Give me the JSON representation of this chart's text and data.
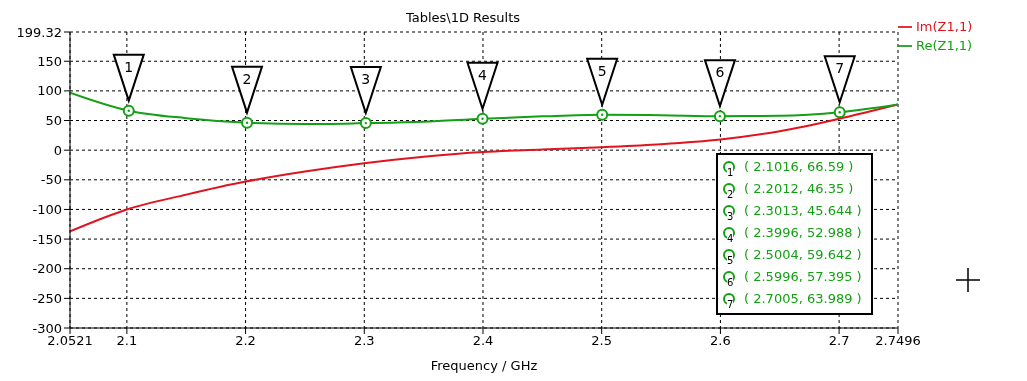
{
  "chart_data": {
    "type": "line",
    "title": "Tables\\1D Results",
    "xlabel": "Frequency / GHz",
    "xlim": [
      2.0521,
      2.7496
    ],
    "xticks": [
      2.0521,
      2.1,
      2.2,
      2.3,
      2.4,
      2.5,
      2.6,
      2.7,
      2.7496
    ],
    "ylim": [
      -300,
      199.32
    ],
    "yticks": [
      -300,
      -250,
      -200,
      -150,
      -100,
      -50,
      0,
      50,
      100,
      150,
      199.32
    ],
    "grid": true,
    "legend": "top right",
    "marker": "none",
    "line_style": "solid",
    "series": [
      {
        "name": "Im(Z1,1)",
        "color": "#e0141e",
        "x": [
          2.0521,
          2.1,
          2.15,
          2.2,
          2.25,
          2.3,
          2.35,
          2.4,
          2.45,
          2.5,
          2.55,
          2.6,
          2.65,
          2.7,
          2.7496
        ],
        "values": [
          -137,
          -100,
          -75,
          -53,
          -36,
          -22,
          -11,
          -3,
          1,
          5,
          10,
          18,
          32,
          53,
          77
        ]
      },
      {
        "name": "Re(Z1,1)",
        "color": "#14a014",
        "x": [
          2.0521,
          2.1016,
          2.15,
          2.2012,
          2.25,
          2.3013,
          2.35,
          2.3996,
          2.45,
          2.5004,
          2.55,
          2.5996,
          2.65,
          2.7005,
          2.7496
        ],
        "values": [
          97,
          66.59,
          54,
          46.35,
          44,
          45.644,
          48,
          52.988,
          57,
          59.642,
          59,
          57.395,
          58,
          63.989,
          77
        ]
      },
      {
        "type": "scatter",
        "color": "#14a014",
        "marker": "circle",
        "x": [
          2.1016,
          2.2012,
          2.3013,
          2.3996,
          2.5004,
          2.5996,
          2.7005
        ],
        "values": [
          66.59,
          46.35,
          45.644,
          52.988,
          59.642,
          57.395,
          63.989
        ]
      }
    ],
    "annotations": [
      {
        "text": "1",
        "x": 2.1016,
        "y": 66.59
      },
      {
        "text": "2",
        "x": 2.2012,
        "y": 46.35
      },
      {
        "text": "3",
        "x": 2.3013,
        "y": 45.644
      },
      {
        "text": "4",
        "x": 2.3996,
        "y": 52.988
      },
      {
        "text": "5",
        "x": 2.5004,
        "y": 59.642
      },
      {
        "text": "6",
        "x": 2.5996,
        "y": 57.395
      },
      {
        "text": "7",
        "x": 2.7005,
        "y": 63.989
      },
      "( 2.1016, 66.59 )",
      "( 2.2012, 46.35 )",
      "( 2.3013, 45.644 )",
      "( 2.3996, 52.988 )",
      "( 2.5004, 59.642 )",
      "( 2.5996, 57.395 )",
      "( 2.7005, 63.989 )"
    ]
  }
}
